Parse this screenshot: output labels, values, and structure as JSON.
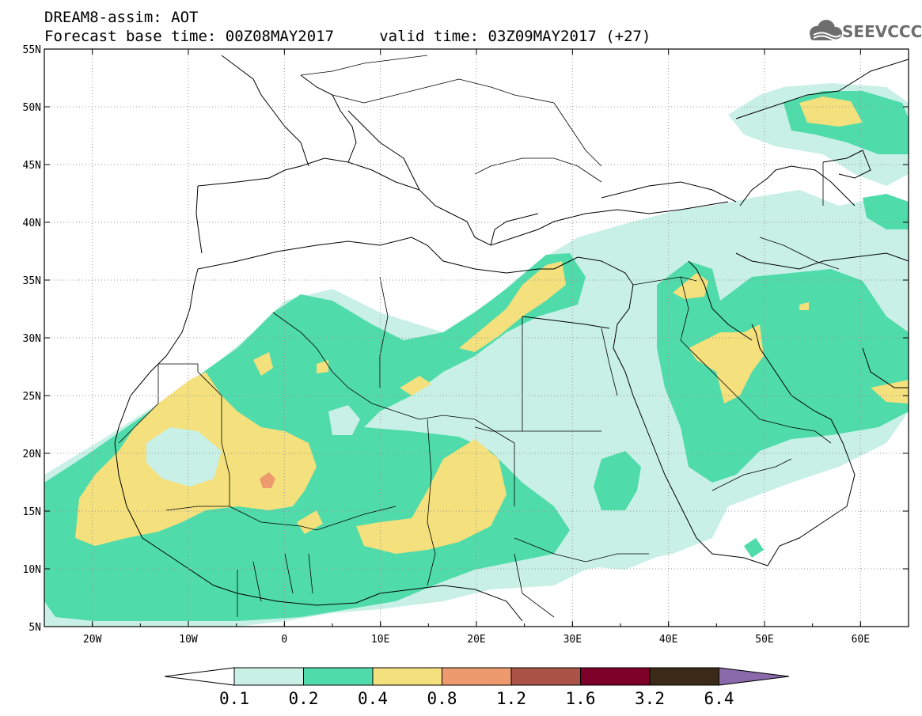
{
  "header": {
    "line1": "DREAM8-assim: AOT",
    "line2": "Forecast base time: 00Z08MAY2017     valid time: 03Z09MAY2017 (+27)"
  },
  "logo": {
    "text": "SEEVCCC",
    "icon": "cloud-icon"
  },
  "map": {
    "lon_range": [
      -25,
      65
    ],
    "lat_range": [
      5,
      55
    ],
    "lat_labels": [
      "55N",
      "50N",
      "45N",
      "40N",
      "35N",
      "30N",
      "25N",
      "20N",
      "15N",
      "10N",
      "5N"
    ],
    "lon_labels": [
      "20W",
      "10W",
      "0",
      "10E",
      "20E",
      "30E",
      "40E",
      "50E",
      "60E"
    ],
    "grid": "dotted"
  },
  "colorbar": {
    "labels": [
      "0.1",
      "0.2",
      "0.4",
      "0.8",
      "1.2",
      "1.6",
      "3.2",
      "6.4"
    ],
    "colors": [
      "#ffffff",
      "#c8f0e6",
      "#4fdbaa",
      "#f4e07c",
      "#ec9a6e",
      "#aa5346",
      "#7d0029",
      "#3c2a18",
      "#8a6aaa"
    ]
  },
  "colors": {
    "c01": "#c8f0e6",
    "c02": "#4fdbaa",
    "c04": "#f4e07c",
    "c08": "#ec9a6e"
  }
}
